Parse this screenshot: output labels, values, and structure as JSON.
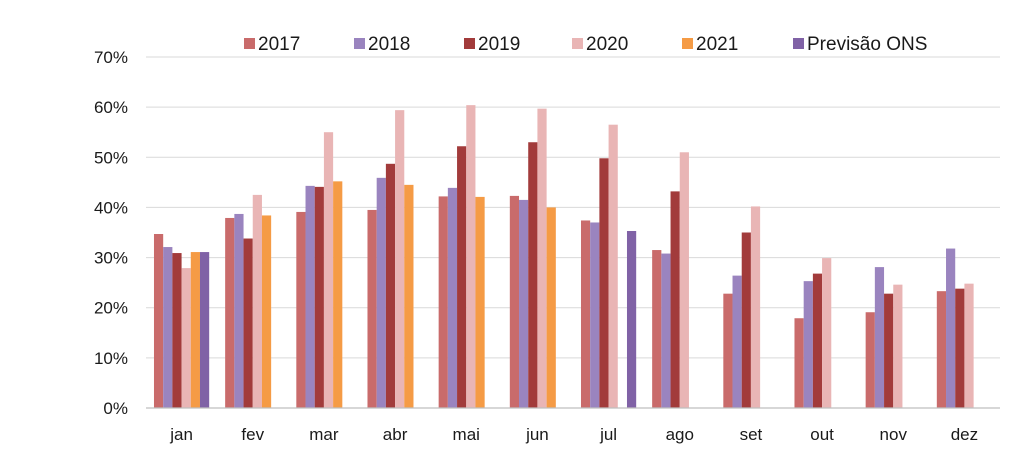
{
  "chart_data": {
    "type": "bar",
    "categories": [
      "jan",
      "fev",
      "mar",
      "abr",
      "mai",
      "jun",
      "jul",
      "ago",
      "set",
      "out",
      "nov",
      "dez"
    ],
    "y_ticks": [
      "0%",
      "10%",
      "20%",
      "30%",
      "40%",
      "50%",
      "60%",
      "70%"
    ],
    "ylim": [
      0,
      70
    ],
    "y_unit": "percent",
    "grid": true,
    "legend_position": "top",
    "series": [
      {
        "name": "2017",
        "color": "#c96b6b",
        "values": [
          34.7,
          37.9,
          39.1,
          39.5,
          42.2,
          42.3,
          37.4,
          31.5,
          22.8,
          17.9,
          19.1,
          23.3
        ]
      },
      {
        "name": "2018",
        "color": "#9a84bf",
        "values": [
          32.1,
          38.7,
          44.3,
          45.9,
          43.9,
          41.5,
          37.0,
          30.8,
          26.4,
          25.3,
          28.1,
          31.8
        ]
      },
      {
        "name": "2019",
        "color": "#a23b3b",
        "values": [
          30.9,
          33.8,
          44.1,
          48.7,
          52.2,
          53.0,
          49.8,
          43.2,
          35.0,
          26.8,
          22.8,
          23.8
        ]
      },
      {
        "name": "2020",
        "color": "#e9b5b5",
        "values": [
          27.9,
          42.5,
          55.0,
          59.4,
          60.4,
          59.7,
          56.5,
          51.0,
          40.2,
          29.9,
          24.6,
          24.8
        ]
      },
      {
        "name": "2021",
        "color": "#f59b45",
        "values": [
          31.1,
          38.4,
          45.2,
          44.5,
          42.1,
          40.0,
          null,
          null,
          null,
          null,
          null,
          null
        ]
      },
      {
        "name": "Previsão ONS",
        "color": "#8062a6",
        "values": [
          31.1,
          null,
          null,
          null,
          null,
          null,
          35.3,
          null,
          null,
          null,
          null,
          null
        ]
      }
    ]
  }
}
